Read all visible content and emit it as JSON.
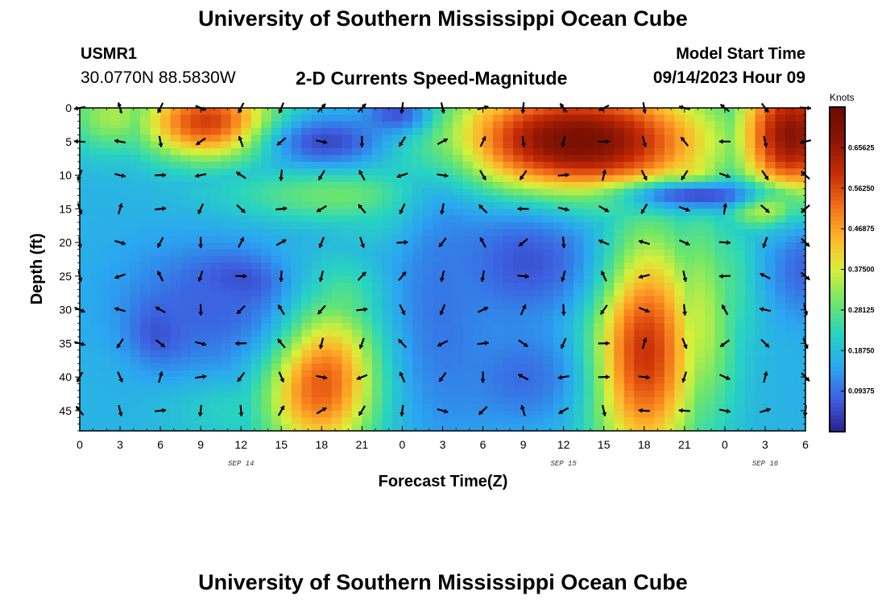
{
  "header": {
    "title": "University of Southern Mississippi Ocean Cube",
    "station": "USMR1",
    "coords": "30.0770N  88.5830W",
    "subtitle": "2-D Currents Speed-Magnitude",
    "model_start_label": "Model Start Time",
    "model_start_value": "09/14/2023 Hour 09",
    "footer_title": "University of Southern Mississippi Ocean Cube"
  },
  "chart_data": {
    "type": "heatmap",
    "title": "2-D Currents Speed-Magnitude",
    "xlabel": "Forecast Time(Z)",
    "ylabel": "Depth (ft)",
    "x_ticks": [
      "0",
      "3",
      "6",
      "9",
      "12",
      "15",
      "18",
      "21",
      "0",
      "3",
      "6",
      "9",
      "12",
      "15",
      "18",
      "21",
      "0",
      "3",
      "6"
    ],
    "x_range_hours": [
      0,
      54
    ],
    "day_labels": [
      {
        "text": "SEP 14",
        "hour": 12
      },
      {
        "text": "SEP 15",
        "hour": 36
      },
      {
        "text": "SEP 16",
        "hour": 51
      }
    ],
    "y_ticks": [
      0,
      5,
      10,
      15,
      20,
      25,
      30,
      35,
      40,
      45
    ],
    "ylim": [
      0,
      48
    ],
    "y_inverted": true,
    "colorbar": {
      "unit": "Knots",
      "range": [
        0.0,
        0.75
      ],
      "tick_labels": [
        "0.65625",
        "0.56250",
        "0.46875",
        "0.37500",
        "0.28125",
        "0.18750",
        "0.09375"
      ],
      "tick_values": [
        0.65625,
        0.5625,
        0.46875,
        0.375,
        0.28125,
        0.1875,
        0.09375
      ],
      "colors": [
        "#2b1f8f",
        "#3d5fe0",
        "#2aa6f0",
        "#28d4c0",
        "#6fe66a",
        "#d8f03a",
        "#ffb22a",
        "#f06a18",
        "#c42a05",
        "#8a1504",
        "#6b0a02"
      ]
    },
    "speed_hotspots": [
      {
        "hour": 9.5,
        "depth": 2,
        "speed": 0.58,
        "sx": 3.5,
        "sy": 4
      },
      {
        "hour": 2.5,
        "depth": 1,
        "speed": 0.34,
        "sx": 2.5,
        "sy": 4
      },
      {
        "hour": 19,
        "depth": 13,
        "speed": 0.3,
        "sx": 6,
        "sy": 3
      },
      {
        "hour": 23,
        "depth": 13,
        "speed": 0.26,
        "sx": 4,
        "sy": 5
      },
      {
        "hour": 17.8,
        "depth": 40,
        "speed": 0.58,
        "sx": 3,
        "sy": 8
      },
      {
        "hour": 19,
        "depth": 30,
        "speed": 0.32,
        "sx": 2.5,
        "sy": 5
      },
      {
        "hour": 12,
        "depth": 44,
        "speed": 0.24,
        "sx": 4,
        "sy": 4
      },
      {
        "hour": 3,
        "depth": 36,
        "speed": 0.18,
        "sx": 3,
        "sy": 6
      },
      {
        "hour": 37,
        "depth": 5,
        "speed": 0.72,
        "sx": 7,
        "sy": 6
      },
      {
        "hour": 31,
        "depth": 3,
        "speed": 0.5,
        "sx": 3,
        "sy": 4
      },
      {
        "hour": 45,
        "depth": 9,
        "speed": 0.42,
        "sx": 2.5,
        "sy": 4
      },
      {
        "hour": 53,
        "depth": 4,
        "speed": 0.68,
        "sx": 2.8,
        "sy": 7
      },
      {
        "hour": 51,
        "depth": 14,
        "speed": 0.45,
        "sx": 2,
        "sy": 2.5
      },
      {
        "hour": 42,
        "depth": 36,
        "speed": 0.6,
        "sx": 2.8,
        "sy": 12
      },
      {
        "hour": 46,
        "depth": 32,
        "speed": 0.36,
        "sx": 2,
        "sy": 12
      },
      {
        "hour": 48,
        "depth": 26,
        "speed": 0.27,
        "sx": 1.8,
        "sy": 8
      },
      {
        "hour": 52,
        "depth": 18,
        "speed": 0.2,
        "sx": 3,
        "sy": 2
      },
      {
        "hour": 27,
        "depth": 44,
        "speed": 0.16,
        "sx": 3,
        "sy": 4
      }
    ],
    "speed_lowspots": [
      {
        "hour": 11.5,
        "depth": 26,
        "speed": 0.0,
        "sx": 2.2,
        "sy": 2.5
      },
      {
        "hour": 6,
        "depth": 33,
        "speed": 0.02,
        "sx": 1.4,
        "sy": 3
      },
      {
        "hour": 18.5,
        "depth": 5,
        "speed": 0.05,
        "sx": 3,
        "sy": 2.5
      },
      {
        "hour": 23.5,
        "depth": 1,
        "speed": 0.06,
        "sx": 1.8,
        "sy": 2
      },
      {
        "hour": 33,
        "depth": 23,
        "speed": 0.06,
        "sx": 4,
        "sy": 6
      },
      {
        "hour": 9.5,
        "depth": 30,
        "speed": 0.08,
        "sx": 5,
        "sy": 7
      },
      {
        "hour": 46,
        "depth": 13,
        "speed": 0.05,
        "sx": 4,
        "sy": 1.5
      },
      {
        "hour": 54,
        "depth": 24,
        "speed": 0.08,
        "sx": 2,
        "sy": 5
      },
      {
        "hour": 27,
        "depth": 30,
        "speed": 0.1,
        "sx": 2.5,
        "sy": 14
      },
      {
        "hour": 33,
        "depth": 40,
        "speed": 0.09,
        "sx": 3,
        "sy": 5
      }
    ],
    "base_speed": 0.17,
    "vector_hours": [
      0,
      3,
      6,
      9,
      12,
      15,
      18,
      21,
      24,
      27,
      30,
      33,
      36,
      39,
      42,
      45,
      48,
      51,
      54
    ],
    "vector_depths": [
      0,
      5,
      10,
      15,
      20,
      25,
      30,
      35,
      40,
      45
    ]
  }
}
